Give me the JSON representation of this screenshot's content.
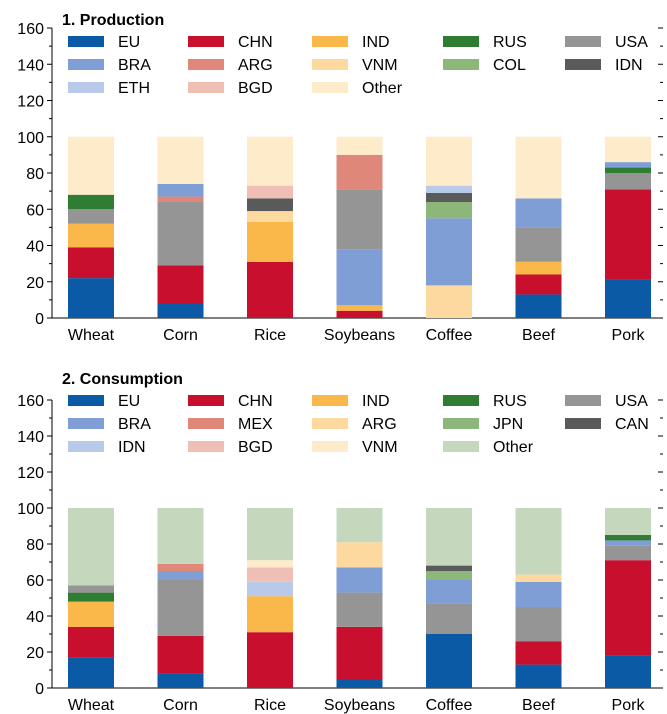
{
  "chart_data": [
    {
      "type": "bar",
      "stacked": true,
      "title": "1. Production",
      "ylim": [
        0,
        160
      ],
      "yticks": [
        0,
        20,
        40,
        60,
        80,
        100,
        120,
        140,
        160
      ],
      "legend_placement": "top",
      "categories": [
        "Wheat",
        "Corn",
        "Rice",
        "Soybeans",
        "Coffee",
        "Beef",
        "Pork"
      ],
      "series": [
        {
          "name": "EU",
          "color": "#0a5aa6",
          "values": [
            22,
            8,
            0,
            0,
            0,
            13,
            21
          ]
        },
        {
          "name": "IDN",
          "color": "#5a5a5a",
          "values": [
            0,
            0,
            0,
            0,
            0,
            0,
            0
          ]
        },
        {
          "name": "CHN",
          "color": "#c8102e",
          "values": [
            17,
            21,
            31,
            4,
            0,
            11,
            50
          ]
        },
        {
          "name": "IND",
          "color": "#fbb84a",
          "values": [
            13,
            0,
            22,
            3,
            0,
            7,
            0
          ]
        },
        {
          "name": "VNM",
          "color": "#fdd9a0",
          "values": [
            0,
            0,
            6,
            0,
            18,
            0,
            0
          ]
        },
        {
          "name": "BRA",
          "color": "#7f9ed6",
          "values": [
            0,
            0,
            0,
            31,
            37,
            0,
            0
          ]
        },
        {
          "name": "USA",
          "color": "#959595",
          "values": [
            8,
            35,
            0,
            33,
            0,
            19,
            9
          ]
        },
        {
          "name": "COL",
          "color": "#8db77a",
          "values": [
            0,
            0,
            0,
            0,
            9,
            0,
            0
          ]
        },
        {
          "name": "RUS",
          "color": "#2e7d32",
          "values": [
            8,
            0,
            0,
            0,
            0,
            0,
            3
          ]
        },
        {
          "name": "ARG",
          "color": "#df887a",
          "values": [
            0,
            3,
            0,
            19,
            0,
            0,
            0
          ]
        },
        {
          "name": "IDN2",
          "color": "#5a5a5a",
          "values": [
            0,
            0,
            7,
            0,
            5,
            0,
            0
          ]
        },
        {
          "name": "BGD",
          "color": "#efbfb6",
          "values": [
            0,
            0,
            7,
            0,
            0,
            0,
            0
          ]
        },
        {
          "name": "BRA2",
          "color": "#7f9ed6",
          "values": [
            0,
            7,
            0,
            0,
            0,
            16,
            3
          ]
        },
        {
          "name": "ETH",
          "color": "#b8c9ea",
          "values": [
            0,
            0,
            0,
            0,
            4,
            0,
            0
          ]
        },
        {
          "name": "Other",
          "color": "#fdebc9",
          "values": [
            32,
            26,
            27,
            10,
            27,
            34,
            14
          ]
        }
      ],
      "legend": [
        {
          "label": "EU",
          "color": "#0a5aa6"
        },
        {
          "label": "CHN",
          "color": "#c8102e"
        },
        {
          "label": "IND",
          "color": "#fbb84a"
        },
        {
          "label": "RUS",
          "color": "#2e7d32"
        },
        {
          "label": "USA",
          "color": "#959595"
        },
        {
          "label": "BRA",
          "color": "#7f9ed6"
        },
        {
          "label": "ARG",
          "color": "#df887a"
        },
        {
          "label": "VNM",
          "color": "#fdd9a0"
        },
        {
          "label": "COL",
          "color": "#8db77a"
        },
        {
          "label": "IDN",
          "color": "#5a5a5a"
        },
        {
          "label": "ETH",
          "color": "#b8c9ea"
        },
        {
          "label": "BGD",
          "color": "#efbfb6"
        },
        {
          "label": "Other",
          "color": "#fdebc9"
        }
      ]
    },
    {
      "type": "bar",
      "stacked": true,
      "title": "2. Consumption",
      "ylim": [
        0,
        160
      ],
      "yticks": [
        0,
        20,
        40,
        60,
        80,
        100,
        120,
        140,
        160
      ],
      "legend_placement": "top",
      "categories": [
        "Wheat",
        "Corn",
        "Rice",
        "Soybeans",
        "Coffee",
        "Beef",
        "Pork"
      ],
      "series": [
        {
          "name": "EU",
          "color": "#0a5aa6",
          "values": [
            17,
            8,
            0,
            5,
            30,
            13,
            18
          ]
        },
        {
          "name": "CHN",
          "color": "#c8102e",
          "values": [
            17,
            21,
            31,
            29,
            0,
            13,
            53
          ]
        },
        {
          "name": "IND",
          "color": "#fbb84a",
          "values": [
            14,
            0,
            20,
            0,
            0,
            0,
            0
          ]
        },
        {
          "name": "USA",
          "color": "#959595",
          "values": [
            0,
            31,
            0,
            19,
            17,
            19,
            8
          ]
        },
        {
          "name": "BRA",
          "color": "#7f9ed6",
          "values": [
            0,
            5,
            0,
            14,
            13,
            14,
            3
          ]
        },
        {
          "name": "IDN",
          "color": "#b8c9ea",
          "values": [
            0,
            0,
            8,
            0,
            0,
            0,
            0
          ]
        },
        {
          "name": "ARG",
          "color": "#fdd9a0",
          "values": [
            0,
            0,
            0,
            14,
            0,
            4,
            0
          ]
        },
        {
          "name": "JPN",
          "color": "#8db77a",
          "values": [
            0,
            0,
            0,
            0,
            5,
            0,
            0
          ]
        },
        {
          "name": "CAN",
          "color": "#5a5a5a",
          "values": [
            0,
            0,
            0,
            0,
            3,
            0,
            0
          ]
        },
        {
          "name": "RUS",
          "color": "#2e7d32",
          "values": [
            5,
            0,
            0,
            0,
            0,
            0,
            3
          ]
        },
        {
          "name": "USA2",
          "color": "#959595",
          "values": [
            4,
            0,
            0,
            0,
            0,
            0,
            0
          ]
        },
        {
          "name": "MEX",
          "color": "#df887a",
          "values": [
            0,
            4,
            0,
            0,
            0,
            0,
            0
          ]
        },
        {
          "name": "BGD",
          "color": "#efbfb6",
          "values": [
            0,
            0,
            8,
            0,
            0,
            0,
            0
          ]
        },
        {
          "name": "VNM",
          "color": "#fdebc9",
          "values": [
            0,
            0,
            4,
            0,
            0,
            0,
            0
          ]
        },
        {
          "name": "Other",
          "color": "#c5d8bd",
          "values": [
            43,
            31,
            29,
            19,
            32,
            37,
            15
          ]
        }
      ],
      "legend": [
        {
          "label": "EU",
          "color": "#0a5aa6"
        },
        {
          "label": "CHN",
          "color": "#c8102e"
        },
        {
          "label": "IND",
          "color": "#fbb84a"
        },
        {
          "label": "RUS",
          "color": "#2e7d32"
        },
        {
          "label": "USA",
          "color": "#959595"
        },
        {
          "label": "BRA",
          "color": "#7f9ed6"
        },
        {
          "label": "MEX",
          "color": "#df887a"
        },
        {
          "label": "ARG",
          "color": "#fdd9a0"
        },
        {
          "label": "JPN",
          "color": "#8db77a"
        },
        {
          "label": "CAN",
          "color": "#5a5a5a"
        },
        {
          "label": "IDN",
          "color": "#b8c9ea"
        },
        {
          "label": "BGD",
          "color": "#efbfb6"
        },
        {
          "label": "VNM",
          "color": "#fdebc9"
        },
        {
          "label": "Other",
          "color": "#c5d8bd"
        }
      ]
    }
  ]
}
